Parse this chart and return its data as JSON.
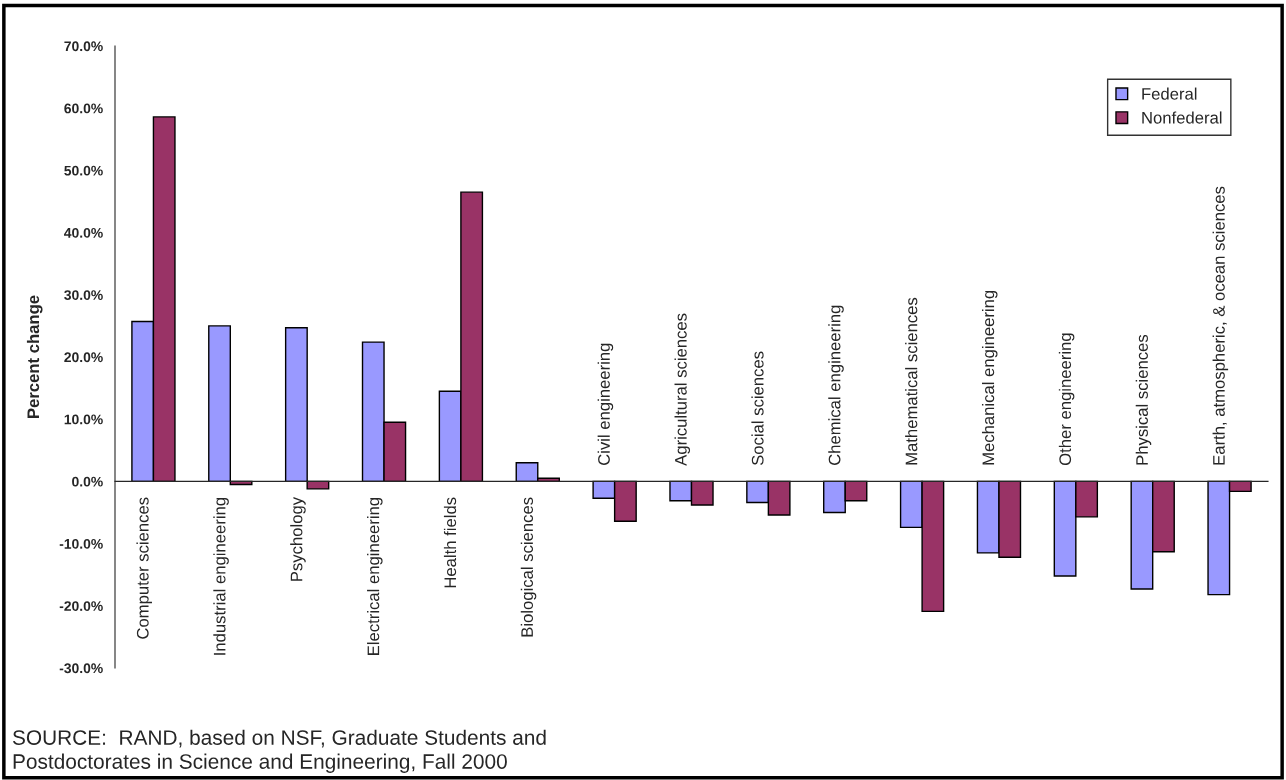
{
  "chart_data": {
    "type": "bar",
    "ylabel": "Percent change",
    "categories": [
      "Computer sciences",
      "Industrial engineering",
      "Psychology",
      "Electrical engineering",
      "Health fields",
      "Biological sciences",
      "Civil engineering",
      "Agricultural sciences",
      "Social sciences",
      "Chemical engineering",
      "Mathematical sciences",
      "Mechanical engineering",
      "Other engineering",
      "Physical sciences",
      "Earth, atmospheric, & ocean sciences"
    ],
    "series": [
      {
        "name": "Federal",
        "color": "#9999ff",
        "values": [
          25.7,
          25.0,
          24.7,
          22.4,
          14.5,
          3.0,
          -2.7,
          -3.1,
          -3.4,
          -5.0,
          -7.4,
          -11.5,
          -15.2,
          -17.3,
          -18.2
        ]
      },
      {
        "name": "Nonfederal",
        "color": "#993366",
        "values": [
          58.6,
          -0.5,
          -1.2,
          9.5,
          46.5,
          0.5,
          -6.4,
          -3.8,
          -5.4,
          -3.1,
          -20.9,
          -12.2,
          -5.7,
          -11.3,
          -1.6
        ]
      }
    ],
    "ylim": [
      -30,
      70
    ],
    "yticks": [
      {
        "value": -30,
        "label": "-30.0%"
      },
      {
        "value": -20,
        "label": "-20.0%"
      },
      {
        "value": -10,
        "label": "-10.0%"
      },
      {
        "value": 0,
        "label": "0.0%"
      },
      {
        "value": 10,
        "label": "10.0%"
      },
      {
        "value": 20,
        "label": "20.0%"
      },
      {
        "value": 30,
        "label": "30.0%"
      },
      {
        "value": 40,
        "label": "40.0%"
      },
      {
        "value": 50,
        "label": "50.0%"
      },
      {
        "value": 60,
        "label": "60.0%"
      },
      {
        "value": 70,
        "label": "70.0%"
      }
    ],
    "grid": false,
    "legend": "top right",
    "annotations": [
      "SOURCE:  RAND, based on NSF, Graduate Students and\nPostdoctorates in Science and Engineering, Fall 2000"
    ]
  }
}
